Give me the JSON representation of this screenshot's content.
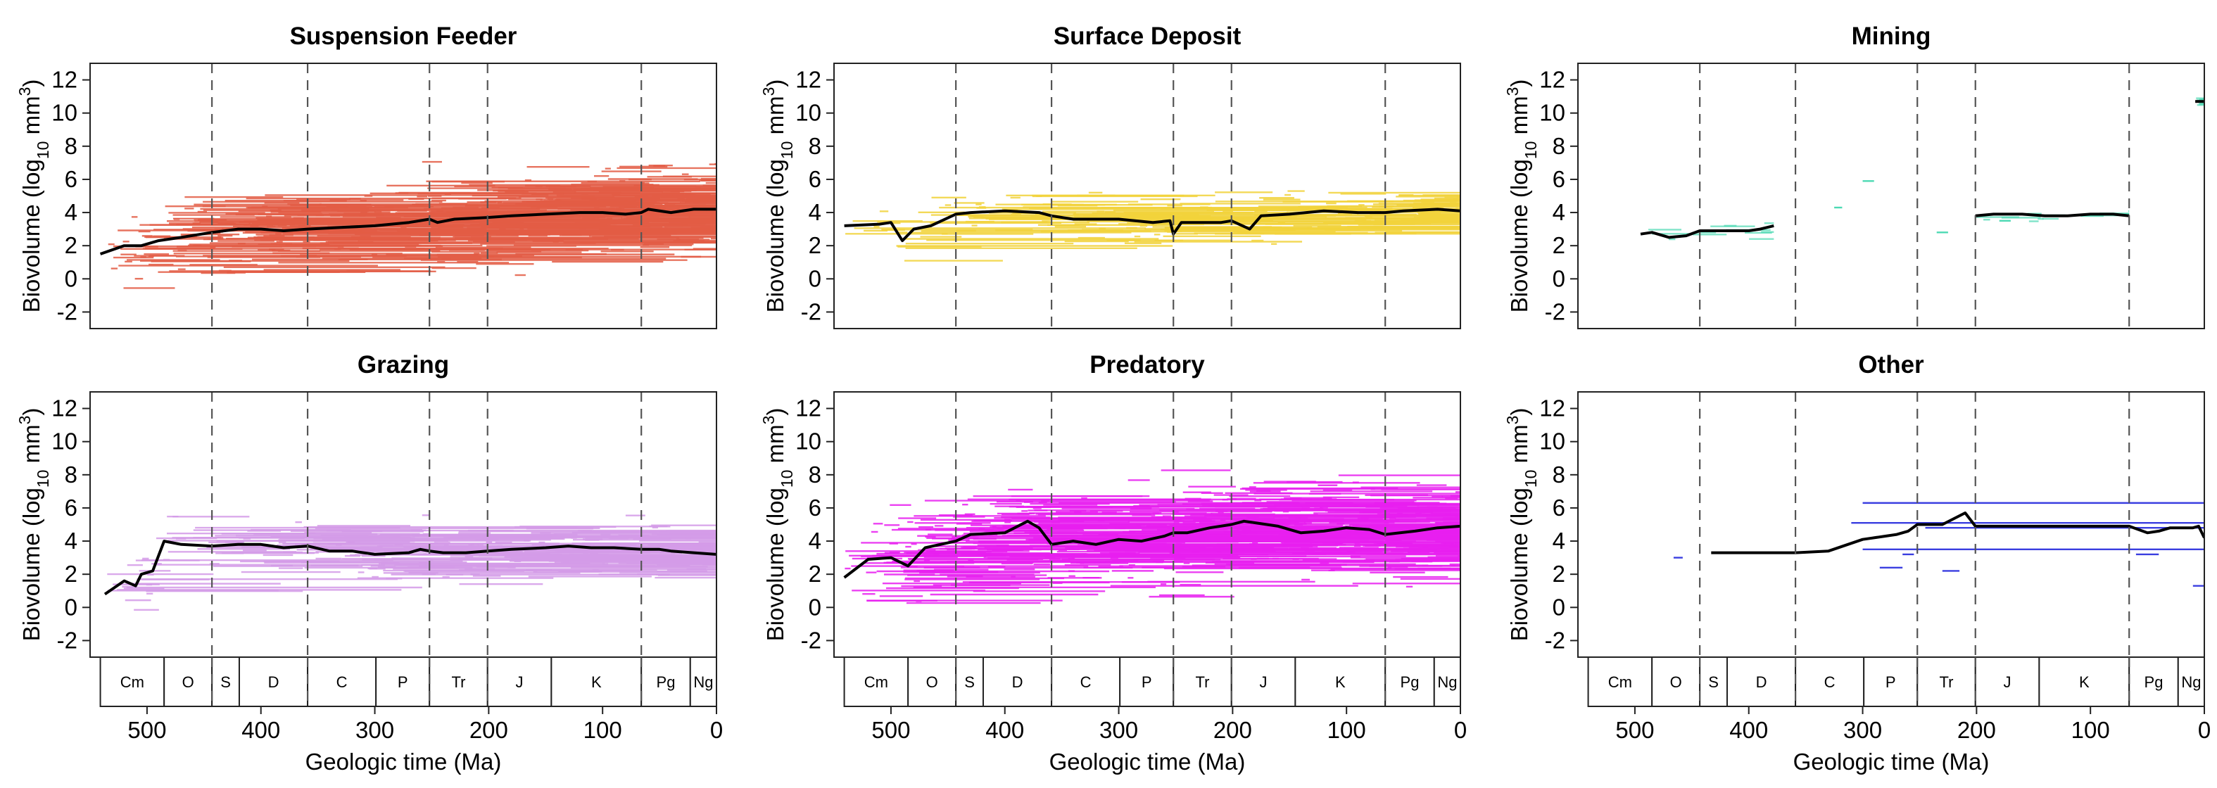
{
  "figure": {
    "ylabel_prefix": "Biovolume (log",
    "ylabel_sub": "10",
    "ylabel_unit": " mm",
    "ylabel_sup": "3",
    "ylabel_end": ")",
    "xlabel": "Geologic time (Ma)",
    "periods": [
      {
        "label": "Cm",
        "start": 541,
        "end": 485
      },
      {
        "label": "O",
        "start": 485,
        "end": 443
      },
      {
        "label": "S",
        "start": 443,
        "end": 419
      },
      {
        "label": "D",
        "start": 419,
        "end": 359
      },
      {
        "label": "C",
        "start": 359,
        "end": 299
      },
      {
        "label": "P",
        "start": 299,
        "end": 252
      },
      {
        "label": "Tr",
        "start": 252,
        "end": 201
      },
      {
        "label": "J",
        "start": 201,
        "end": 145
      },
      {
        "label": "K",
        "start": 145,
        "end": 66
      },
      {
        "label": "Pg",
        "start": 66,
        "end": 23
      },
      {
        "label": "Ng",
        "start": 23,
        "end": 0
      }
    ],
    "boundaries": [
      443,
      359,
      252,
      201,
      66
    ]
  },
  "chart_data": [
    {
      "type": "line",
      "title": "Suspension Feeder",
      "color": "#e35c45",
      "density": 0.9,
      "spread": 1.6,
      "noise": 0.25,
      "xlim": [
        550,
        0
      ],
      "ylim": [
        -3,
        13
      ],
      "xticks": [
        500,
        400,
        300,
        200,
        100,
        0
      ],
      "yticks": [
        -2,
        0,
        2,
        4,
        6,
        8,
        10,
        12
      ],
      "show_periods": false,
      "x": [
        541,
        520,
        505,
        490,
        470,
        443,
        420,
        400,
        380,
        359,
        330,
        300,
        270,
        252,
        245,
        230,
        201,
        180,
        150,
        120,
        100,
        80,
        66,
        60,
        40,
        20,
        0
      ],
      "y": [
        1.5,
        2.0,
        2.0,
        2.3,
        2.5,
        2.8,
        3.0,
        3.0,
        2.9,
        3.0,
        3.1,
        3.2,
        3.4,
        3.6,
        3.4,
        3.6,
        3.7,
        3.8,
        3.9,
        4.0,
        4.0,
        3.9,
        4.0,
        4.2,
        4.0,
        4.2,
        4.2
      ]
    },
    {
      "type": "line",
      "title": "Surface Deposit",
      "color": "#f2d33b",
      "density": 0.35,
      "spread": 0.9,
      "noise": 0.2,
      "xlim": [
        550,
        0
      ],
      "ylim": [
        -3,
        13
      ],
      "xticks": [
        500,
        400,
        300,
        200,
        100,
        0
      ],
      "yticks": [
        -2,
        0,
        2,
        4,
        6,
        8,
        10,
        12
      ],
      "show_periods": false,
      "x": [
        541,
        510,
        500,
        490,
        480,
        465,
        443,
        430,
        400,
        370,
        359,
        340,
        300,
        270,
        255,
        252,
        245,
        210,
        201,
        185,
        175,
        150,
        120,
        90,
        66,
        50,
        20,
        0
      ],
      "y": [
        3.2,
        3.3,
        3.4,
        2.3,
        3.0,
        3.2,
        3.9,
        4.0,
        4.1,
        4.0,
        3.8,
        3.6,
        3.6,
        3.4,
        3.5,
        2.7,
        3.4,
        3.4,
        3.5,
        3.0,
        3.8,
        3.9,
        4.1,
        4.0,
        4.0,
        4.1,
        4.2,
        4.1
      ]
    },
    {
      "type": "line",
      "title": "Mining",
      "color": "#4cd9b3",
      "density": 0.0,
      "spread": 0.3,
      "noise": 0.1,
      "xlim": [
        550,
        0
      ],
      "ylim": [
        -3,
        13
      ],
      "xticks": [
        500,
        400,
        300,
        200,
        100,
        0
      ],
      "yticks": [
        -2,
        0,
        2,
        4,
        6,
        8,
        10,
        12
      ],
      "show_periods": false,
      "segments": [
        {
          "x": [
            495,
            485,
            470,
            455,
            443,
            430,
            400,
            390,
            378
          ],
          "y": [
            2.7,
            2.8,
            2.5,
            2.6,
            2.9,
            2.9,
            2.9,
            3.0,
            3.2
          ]
        },
        {
          "x": [
            201,
            185,
            160,
            140,
            120,
            100,
            80,
            66
          ],
          "y": [
            3.8,
            3.9,
            3.9,
            3.8,
            3.8,
            3.9,
            3.9,
            3.8
          ]
        },
        {
          "x": [
            8,
            0
          ],
          "y": [
            10.7,
            10.7
          ]
        }
      ],
      "isolated": [
        {
          "x1": 300,
          "x2": 290,
          "y": 5.9
        },
        {
          "x1": 325,
          "x2": 318,
          "y": 4.3
        },
        {
          "x1": 235,
          "x2": 225,
          "y": 2.8
        },
        {
          "x1": 180,
          "x2": 170,
          "y": 3.5
        }
      ]
    },
    {
      "type": "line",
      "title": "Grazing",
      "color": "#d49be8",
      "density": 0.45,
      "spread": 1.1,
      "noise": 0.2,
      "xlim": [
        550,
        0
      ],
      "ylim": [
        -3,
        13
      ],
      "xticks": [
        500,
        400,
        300,
        200,
        100,
        0
      ],
      "yticks": [
        -2,
        0,
        2,
        4,
        6,
        8,
        10,
        12
      ],
      "show_periods": true,
      "x": [
        537,
        520,
        510,
        505,
        495,
        485,
        470,
        443,
        420,
        400,
        380,
        359,
        340,
        320,
        300,
        270,
        260,
        252,
        240,
        220,
        201,
        180,
        150,
        130,
        110,
        90,
        66,
        50,
        40,
        20,
        0
      ],
      "y": [
        0.8,
        1.6,
        1.3,
        2.0,
        2.2,
        4.0,
        3.8,
        3.7,
        3.8,
        3.8,
        3.6,
        3.7,
        3.4,
        3.4,
        3.2,
        3.3,
        3.5,
        3.4,
        3.3,
        3.3,
        3.4,
        3.5,
        3.6,
        3.7,
        3.6,
        3.6,
        3.5,
        3.5,
        3.4,
        3.3,
        3.2
      ]
    },
    {
      "type": "line",
      "title": "Predatory",
      "color": "#e81ff0",
      "density": 1.0,
      "spread": 1.8,
      "noise": 0.35,
      "xlim": [
        550,
        0
      ],
      "ylim": [
        -3,
        13
      ],
      "xticks": [
        500,
        400,
        300,
        200,
        100,
        0
      ],
      "yticks": [
        -2,
        0,
        2,
        4,
        6,
        8,
        10,
        12
      ],
      "show_periods": true,
      "x": [
        541,
        520,
        500,
        485,
        470,
        443,
        430,
        400,
        380,
        370,
        359,
        340,
        320,
        300,
        280,
        260,
        252,
        240,
        220,
        201,
        190,
        180,
        160,
        140,
        120,
        100,
        80,
        66,
        40,
        20,
        0
      ],
      "y": [
        1.8,
        2.9,
        3.0,
        2.5,
        3.6,
        4.0,
        4.4,
        4.5,
        5.2,
        4.8,
        3.8,
        4.0,
        3.8,
        4.1,
        4.0,
        4.3,
        4.5,
        4.5,
        4.8,
        5.0,
        5.2,
        5.1,
        4.9,
        4.5,
        4.6,
        4.8,
        4.7,
        4.4,
        4.6,
        4.8,
        4.9
      ]
    },
    {
      "type": "line",
      "title": "Other",
      "color": "#3a3ee0",
      "density": 0.0,
      "spread": 0.5,
      "noise": 0.2,
      "xlim": [
        550,
        0
      ],
      "ylim": [
        -3,
        13
      ],
      "xticks": [
        500,
        400,
        300,
        200,
        100,
        0
      ],
      "yticks": [
        -2,
        0,
        2,
        4,
        6,
        8,
        10,
        12
      ],
      "show_periods": true,
      "x": [
        433,
        400,
        359,
        330,
        300,
        280,
        270,
        260,
        252,
        230,
        210,
        201,
        190,
        150,
        120,
        100,
        80,
        66,
        50,
        40,
        30,
        20,
        10,
        5,
        0
      ],
      "y": [
        3.3,
        3.3,
        3.3,
        3.4,
        4.1,
        4.3,
        4.4,
        4.6,
        5.0,
        5.0,
        5.7,
        4.9,
        4.9,
        4.9,
        4.9,
        4.9,
        4.9,
        4.9,
        4.5,
        4.6,
        4.8,
        4.8,
        4.8,
        4.9,
        4.2
      ],
      "isolated": [
        {
          "x1": 466,
          "x2": 458,
          "y": 3.0
        },
        {
          "x1": 300,
          "x2": 0,
          "y": 6.3
        },
        {
          "x1": 310,
          "x2": 0,
          "y": 5.1
        },
        {
          "x1": 300,
          "x2": 0,
          "y": 3.5
        },
        {
          "x1": 245,
          "x2": 0,
          "y": 4.8
        },
        {
          "x1": 285,
          "x2": 265,
          "y": 2.4
        },
        {
          "x1": 230,
          "x2": 215,
          "y": 2.2
        },
        {
          "x1": 265,
          "x2": 255,
          "y": 3.2
        },
        {
          "x1": 10,
          "x2": 0,
          "y": 1.3
        },
        {
          "x1": 60,
          "x2": 40,
          "y": 3.2
        }
      ]
    }
  ]
}
